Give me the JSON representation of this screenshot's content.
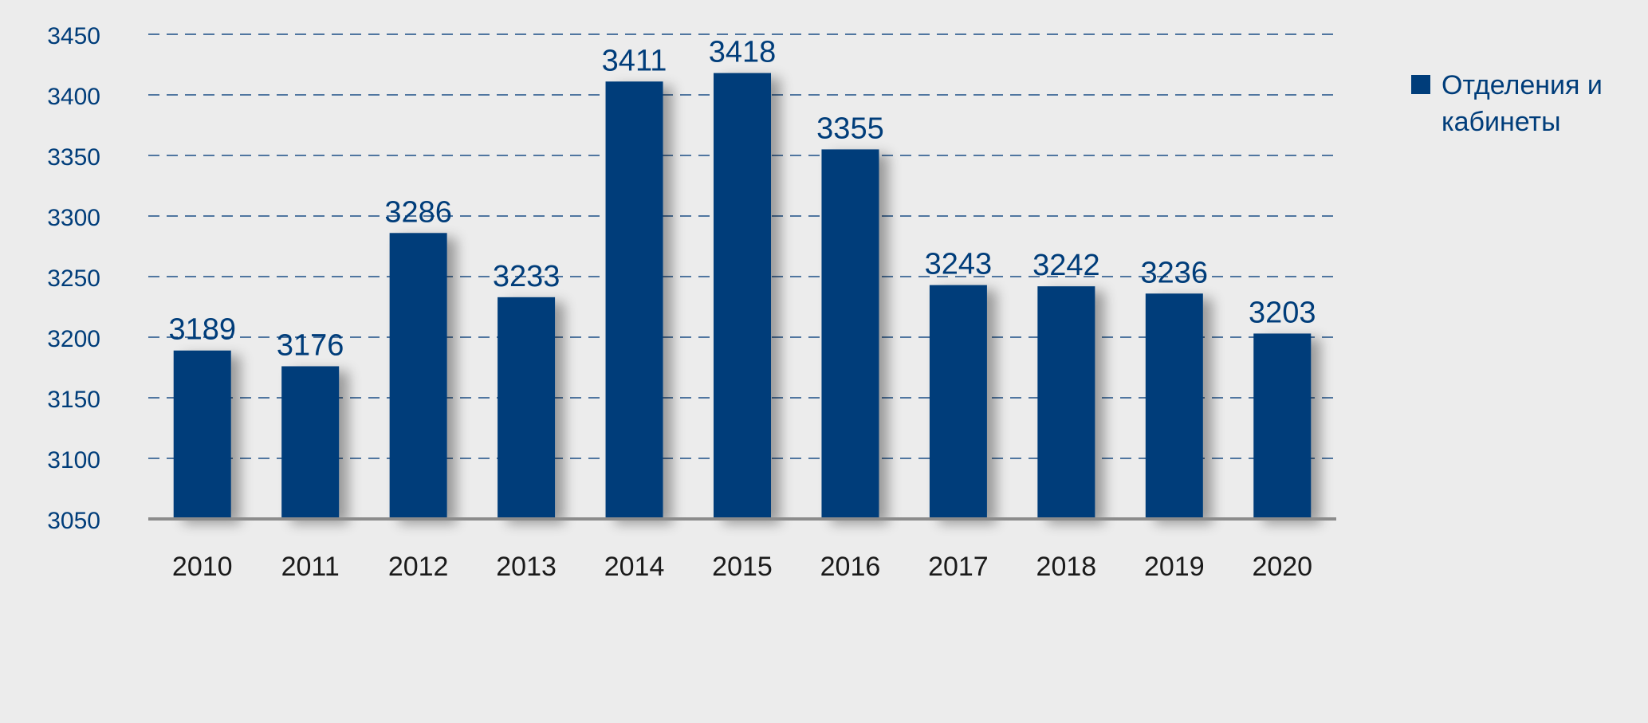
{
  "chart_data": {
    "type": "bar",
    "categories": [
      "2010",
      "2011",
      "2012",
      "2013",
      "2014",
      "2015",
      "2016",
      "2017",
      "2018",
      "2019",
      "2020"
    ],
    "series": [
      {
        "name": "Отделения и кабинеты",
        "values": [
          3189,
          3176,
          3286,
          3233,
          3411,
          3418,
          3355,
          3243,
          3242,
          3236,
          3203
        ]
      }
    ],
    "data_labels": [
      "3189",
      "3176",
      "3286",
      "3233",
      "3411",
      "3418",
      "3355",
      "3243",
      "3242",
      "3236",
      "3203"
    ],
    "y_ticks": [
      "3050",
      "3100",
      "3150",
      "3200",
      "3250",
      "3300",
      "3350",
      "3400",
      "3450"
    ],
    "ylim": [
      3050,
      3450
    ],
    "grid": true,
    "legend_position": "top-right",
    "colors": {
      "bar": "#003d7a",
      "text": "#003d7a",
      "axis_text": "#1a1a1a",
      "baseline": "#8c8c8c",
      "gridline": "#1d4f86",
      "background": "#ececec"
    }
  }
}
